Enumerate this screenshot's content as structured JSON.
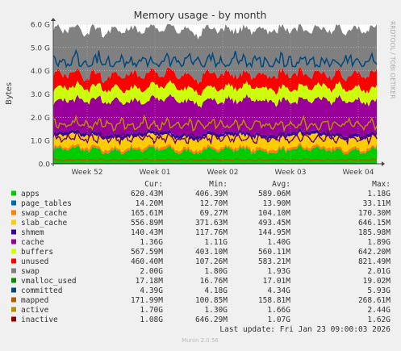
{
  "chart_data": {
    "type": "area",
    "title": "Memory usage - by month",
    "ylabel": "Bytes",
    "side_label": "RRDTOOL / TOBI OETIKER",
    "y_ticks": [
      "0.0",
      "1.0 G",
      "2.0 G",
      "3.0 G",
      "4.0 G",
      "5.0 G",
      "6.0 G"
    ],
    "ylim": [
      0,
      6.0
    ],
    "x_ticks": [
      "Week 52",
      "Week 01",
      "Week 02",
      "Week 03",
      "Week 04"
    ],
    "legend_headers": [
      "Cur:",
      "Min:",
      "Avg:",
      "Max:"
    ],
    "series": [
      {
        "name": "apps",
        "color": "#00cc00",
        "kind": "stack",
        "cur": "620.43M",
        "min": "406.39M",
        "avg": "589.06M",
        "max": "1.18G"
      },
      {
        "name": "page_tables",
        "color": "#0066b3",
        "kind": "stack",
        "cur": "14.20M",
        "min": "12.70M",
        "avg": "13.90M",
        "max": "33.11M"
      },
      {
        "name": "swap_cache",
        "color": "#ff8000",
        "kind": "stack",
        "cur": "165.61M",
        "min": "69.27M",
        "avg": "104.10M",
        "max": "170.30M"
      },
      {
        "name": "slab_cache",
        "color": "#ffcc00",
        "kind": "stack",
        "cur": "556.89M",
        "min": "371.63M",
        "avg": "493.45M",
        "max": "646.15M"
      },
      {
        "name": "shmem",
        "color": "#330099",
        "kind": "stack",
        "cur": "140.43M",
        "min": "117.76M",
        "avg": "144.95M",
        "max": "185.98M"
      },
      {
        "name": "cache",
        "color": "#990099",
        "kind": "stack",
        "cur": "1.36G",
        "min": "1.11G",
        "avg": "1.40G",
        "max": "1.89G"
      },
      {
        "name": "buffers",
        "color": "#ccff00",
        "kind": "stack",
        "cur": "567.59M",
        "min": "403.10M",
        "avg": "560.11M",
        "max": "642.20M"
      },
      {
        "name": "unused",
        "color": "#ff0000",
        "kind": "stack",
        "cur": "460.40M",
        "min": "107.26M",
        "avg": "583.21M",
        "max": "821.49M"
      },
      {
        "name": "swap",
        "color": "#808080",
        "kind": "stack",
        "cur": "2.00G",
        "min": "1.80G",
        "avg": "1.93G",
        "max": "2.01G"
      },
      {
        "name": "vmalloc_used",
        "color": "#008f00",
        "kind": "line",
        "cur": "17.18M",
        "min": "16.76M",
        "avg": "17.01M",
        "max": "19.02M"
      },
      {
        "name": "committed",
        "color": "#00487d",
        "kind": "line",
        "cur": "4.39G",
        "min": "4.18G",
        "avg": "4.34G",
        "max": "5.93G"
      },
      {
        "name": "mapped",
        "color": "#b35a00",
        "kind": "line",
        "cur": "171.99M",
        "min": "100.85M",
        "avg": "158.81M",
        "max": "268.61M"
      },
      {
        "name": "active",
        "color": "#b38f00",
        "kind": "line",
        "cur": "1.70G",
        "min": "1.30G",
        "avg": "1.66G",
        "max": "2.44G"
      },
      {
        "name": "inactive",
        "color": "#6b006b",
        "kind": "line",
        "cur": "1.08G",
        "min": "646.29M",
        "avg": "1.07G",
        "max": "1.62G"
      }
    ],
    "legend_colors": [
      "#00cc00",
      "#0066b3",
      "#ff8000",
      "#ffcc00",
      "#330099",
      "#990099",
      "#ccff00",
      "#ff0000",
      "#808080",
      "#008f00",
      "#00487d",
      "#b35a00",
      "#b38f00",
      "#8f0000"
    ],
    "last_update": "Last update: Fri Jan 23 09:00:03 2026",
    "footer": "Munin 2.0.56"
  }
}
